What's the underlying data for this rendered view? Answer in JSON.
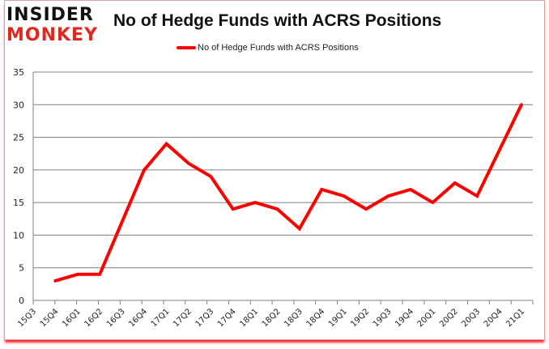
{
  "logo": {
    "line1": "INSIDER",
    "line2": "MONKEY"
  },
  "header": {
    "title": "No of Hedge Funds with ACRS Positions"
  },
  "legend": {
    "label": "No of Hedge Funds with ACRS Positions",
    "color": "#ff0000"
  },
  "chart_data": {
    "type": "line",
    "title": "No of Hedge Funds with ACRS Positions",
    "xlabel": "",
    "ylabel": "",
    "ylim": [
      0,
      35
    ],
    "yticks": [
      0,
      5,
      10,
      15,
      20,
      25,
      30,
      35
    ],
    "grid": true,
    "legend_position": "top",
    "categories": [
      "15Q3",
      "15Q4",
      "16Q1",
      "16Q2",
      "16Q3",
      "16Q4",
      "17Q1",
      "17Q2",
      "17Q3",
      "17Q4",
      "18Q1",
      "18Q2",
      "18Q3",
      "18Q4",
      "19Q1",
      "19Q2",
      "19Q3",
      "19Q4",
      "20Q1",
      "20Q2",
      "20Q3",
      "20Q4",
      "21Q1"
    ],
    "series": [
      {
        "name": "No of Hedge Funds with ACRS Positions",
        "color": "#ff0000",
        "values": [
          null,
          3,
          4,
          4,
          12,
          20,
          24,
          21,
          19,
          14,
          15,
          14,
          11,
          17,
          16,
          14,
          16,
          17,
          15,
          18,
          16,
          23,
          30
        ]
      }
    ]
  }
}
